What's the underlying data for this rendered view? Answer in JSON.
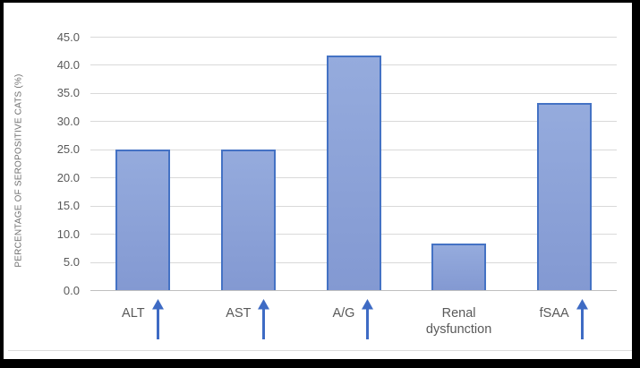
{
  "figure": {
    "frame_color": "#000000",
    "bottom_rule_color": "#dcdcdc",
    "background": "#ffffff"
  },
  "chart_data": {
    "type": "bar",
    "title": "",
    "xlabel": "",
    "ylabel": "PERCENTAGE OF SEROPOSITIVE CATS (%)",
    "categories": [
      "ALT",
      "AST",
      "A/G",
      "Renal dysfunction",
      "fSAA"
    ],
    "category_arrows": [
      true,
      true,
      true,
      false,
      true
    ],
    "arrow_meaning": "increase-arrow",
    "values": [
      25.0,
      25.0,
      41.7,
      8.3,
      33.3
    ],
    "ylim": [
      0,
      45
    ],
    "ytick_step": 5,
    "ytick_labels": [
      "0.0",
      "5.0",
      "10.0",
      "15.0",
      "20.0",
      "25.0",
      "30.0",
      "35.0",
      "40.0",
      "45.0"
    ],
    "grid": true,
    "legend": "none",
    "colors": {
      "bar_fill_top": "#95abdd",
      "bar_fill_bottom": "#8399d2",
      "bar_border": "#4472c4",
      "gridline": "#d9d9d9",
      "axis_line": "#bfbfbf",
      "tick_text": "#595959",
      "category_text": "#595959",
      "ylabel_text": "#6e6e6e",
      "arrow": "#3e6bc4"
    }
  }
}
